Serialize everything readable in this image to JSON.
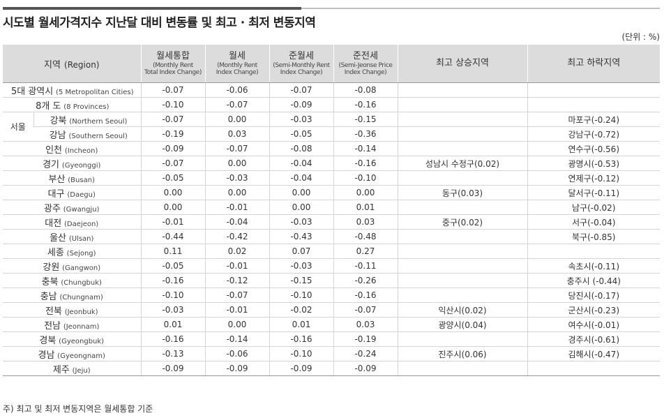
{
  "title": "시도별 월세가격지수 지난달 대비 변동률 및 최고 · 최저 변동지역",
  "unit": "(단위 : %)",
  "headers": {
    "region_ko": "지역",
    "region_en": "(Region)",
    "total_ko": "월세통합",
    "total_en1": "(Monthly Rent",
    "total_en2": "Total Index Change)",
    "monthly_ko": "월세",
    "monthly_en1": "(Monthly Rent",
    "monthly_en2": "Index Change)",
    "semimonthly_ko": "준월세",
    "semimonthly_en1": "(Semi-Monthly Rent",
    "semimonthly_en2": "Index Change)",
    "semijeonse_ko": "준전세",
    "semijeonse_en1": "(Semi-Jeonse Price",
    "semijeonse_en2": "Index Change)",
    "up": "최고 상승지역",
    "down": "최고 하락지역"
  },
  "seoul_label": "서울",
  "rows": [
    {
      "ko": "5대 광역시",
      "en": "(5 Metropolitan Cities)",
      "total": "-0.07",
      "monthly": "-0.06",
      "semimonthly": "-0.07",
      "semijeonse": "-0.08",
      "up": "",
      "down": ""
    },
    {
      "ko": "8개 도",
      "en": "(8 Provinces)",
      "total": "-0.10",
      "monthly": "-0.07",
      "semimonthly": "-0.09",
      "semijeonse": "-0.16",
      "up": "",
      "down": ""
    },
    {
      "ko": "강북",
      "en": "(Northern Seoul)",
      "total": "-0.07",
      "monthly": "0.00",
      "semimonthly": "-0.03",
      "semijeonse": "-0.15",
      "up": "",
      "down": "마포구(-0.24)"
    },
    {
      "ko": "강남",
      "en": "(Southern Seoul)",
      "total": "-0.19",
      "monthly": "0.03",
      "semimonthly": "-0.05",
      "semijeonse": "-0.36",
      "up": "",
      "down": "강남구(-0.72)"
    },
    {
      "ko": "인천",
      "en": "(Incheon)",
      "total": "-0.09",
      "monthly": "-0.07",
      "semimonthly": "-0.08",
      "semijeonse": "-0.14",
      "up": "",
      "down": "연수구(-0.56)"
    },
    {
      "ko": "경기",
      "en": "(Gyeonggi)",
      "total": "-0.07",
      "monthly": "0.00",
      "semimonthly": "-0.04",
      "semijeonse": "-0.16",
      "up": "성남시 수정구(0.02)",
      "down": "광명시(-0.53)"
    },
    {
      "ko": "부산",
      "en": "(Busan)",
      "total": "-0.05",
      "monthly": "-0.03",
      "semimonthly": "-0.04",
      "semijeonse": "-0.10",
      "up": "",
      "down": "연제구(-0.12)"
    },
    {
      "ko": "대구",
      "en": "(Daegu)",
      "total": "0.00",
      "monthly": "0.00",
      "semimonthly": "0.00",
      "semijeonse": "0.00",
      "up": "동구(0.03)",
      "down": "달서구(-0.11)"
    },
    {
      "ko": "광주",
      "en": "(Gwangju)",
      "total": "0.00",
      "monthly": "-0.01",
      "semimonthly": "0.00",
      "semijeonse": "0.01",
      "up": "",
      "down": "남구(-0.02)"
    },
    {
      "ko": "대전",
      "en": "(Daejeon)",
      "total": "-0.01",
      "monthly": "-0.04",
      "semimonthly": "-0.03",
      "semijeonse": "0.03",
      "up": "중구(0.02)",
      "down": "서구(-0.04)"
    },
    {
      "ko": "울산",
      "en": "(Ulsan)",
      "total": "-0.44",
      "monthly": "-0.42",
      "semimonthly": "-0.43",
      "semijeonse": "-0.48",
      "up": "",
      "down": "북구(-0.85)"
    },
    {
      "ko": "세종",
      "en": "(Sejong)",
      "total": "0.11",
      "monthly": "0.02",
      "semimonthly": "0.07",
      "semijeonse": "0.27",
      "up": "",
      "down": ""
    },
    {
      "ko": "강원",
      "en": "(Gangwon)",
      "total": "-0.05",
      "monthly": "-0.01",
      "semimonthly": "-0.03",
      "semijeonse": "-0.11",
      "up": "",
      "down": "속초시(-0.11)"
    },
    {
      "ko": "충북",
      "en": "(Chungbuk)",
      "total": "-0.16",
      "monthly": "-0.12",
      "semimonthly": "-0.15",
      "semijeonse": "-0.26",
      "up": "",
      "down": "충주시 (-0.44)"
    },
    {
      "ko": "충남",
      "en": "(Chungnam)",
      "total": "-0.10",
      "monthly": "-0.07",
      "semimonthly": "-0.10",
      "semijeonse": "-0.16",
      "up": "",
      "down": "당진시(-0.17)"
    },
    {
      "ko": "전북",
      "en": "(Jeonbuk)",
      "total": "-0.03",
      "monthly": "-0.01",
      "semimonthly": "-0.02",
      "semijeonse": "-0.07",
      "up": "익산시(0.02)",
      "down": "군산시(-0.23)"
    },
    {
      "ko": "전남",
      "en": "(Jeonnam)",
      "total": "0.01",
      "monthly": "0.00",
      "semimonthly": "0.01",
      "semijeonse": "0.03",
      "up": "광양시(0.04)",
      "down": "여수시(-0.01)"
    },
    {
      "ko": "경북",
      "en": "(Gyeongbuk)",
      "total": "-0.16",
      "monthly": "-0.14",
      "semimonthly": "-0.16",
      "semijeonse": "-0.19",
      "up": "",
      "down": "경주시(-0.61)"
    },
    {
      "ko": "경남",
      "en": "(Gyeongnam)",
      "total": "-0.13",
      "monthly": "-0.06",
      "semimonthly": "-0.10",
      "semijeonse": "-0.24",
      "up": "진주시(0.06)",
      "down": "김해시(-0.47)"
    },
    {
      "ko": "제주",
      "en": "(Jeju)",
      "total": "-0.09",
      "monthly": "-0.09",
      "semimonthly": "-0.09",
      "semijeonse": "-0.09",
      "up": "",
      "down": ""
    }
  ],
  "note": "주) 최고 및 최저 변동지역은 월세통합 기준"
}
